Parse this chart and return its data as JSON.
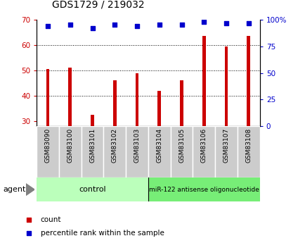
{
  "title": "GDS1729 / 219032",
  "categories": [
    "GSM83090",
    "GSM83100",
    "GSM83101",
    "GSM83102",
    "GSM83103",
    "GSM83104",
    "GSM83105",
    "GSM83106",
    "GSM83107",
    "GSM83108"
  ],
  "bar_values": [
    50.5,
    51.0,
    32.5,
    46.0,
    49.0,
    42.0,
    46.0,
    63.5,
    59.5,
    63.5
  ],
  "dot_values_left": [
    67.5,
    68.0,
    66.5,
    68.0,
    67.5,
    68.0,
    68.0,
    69.0,
    68.5,
    68.5
  ],
  "bar_color": "#cc0000",
  "dot_color": "#0000cc",
  "ylim_left": [
    28,
    70
  ],
  "yticks_left": [
    30,
    40,
    50,
    60,
    70
  ],
  "ylim_right": [
    0,
    100
  ],
  "yticks_right": [
    0,
    25,
    50,
    75,
    100
  ],
  "right_tick_labels": [
    "0",
    "25",
    "50",
    "75",
    "100%"
  ],
  "grid_lines": [
    40,
    50,
    60
  ],
  "control_label": "control",
  "treatment_label": "miR-122 antisense oligonucleotide",
  "agent_label": "agent",
  "legend_count_label": "count",
  "legend_percentile_label": "percentile rank within the sample",
  "control_bg": "#bbffbb",
  "treatment_bg": "#77ee77",
  "xlabel_bg": "#cccccc",
  "left_tick_color": "#cc0000",
  "right_tick_color": "#0000cc",
  "bar_width": 0.15,
  "fig_bg": "#ffffff"
}
